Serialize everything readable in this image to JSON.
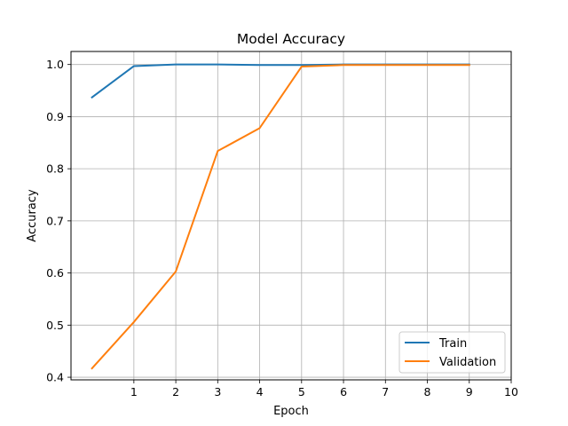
{
  "chart_data": {
    "type": "line",
    "title": "Model Accuracy",
    "xlabel": "Epoch",
    "ylabel": "Accuracy",
    "xlim": [
      -0.5,
      10
    ],
    "ylim": [
      0.395,
      1.025
    ],
    "xticks": [
      1,
      2,
      3,
      4,
      5,
      6,
      7,
      8,
      9,
      10
    ],
    "yticks": [
      0.4,
      0.5,
      0.6,
      0.7,
      0.8,
      0.9,
      1.0
    ],
    "ytick_labels": [
      "0.4",
      "0.5",
      "0.6",
      "0.7",
      "0.8",
      "0.9",
      "1.0"
    ],
    "grid": true,
    "legend_position": "lower-right",
    "x": [
      0,
      1,
      2,
      3,
      4,
      5,
      6,
      7,
      8,
      9
    ],
    "series": [
      {
        "name": "Train",
        "color": "#1f77b4",
        "values": [
          0.937,
          0.997,
          1.0,
          1.0,
          0.999,
          0.999,
          1.0,
          1.0,
          1.0,
          1.0
        ]
      },
      {
        "name": "Validation",
        "color": "#ff7f0e",
        "values": [
          0.417,
          0.506,
          0.603,
          0.834,
          0.878,
          0.996,
          0.999,
          0.999,
          0.999,
          0.999
        ]
      }
    ]
  }
}
